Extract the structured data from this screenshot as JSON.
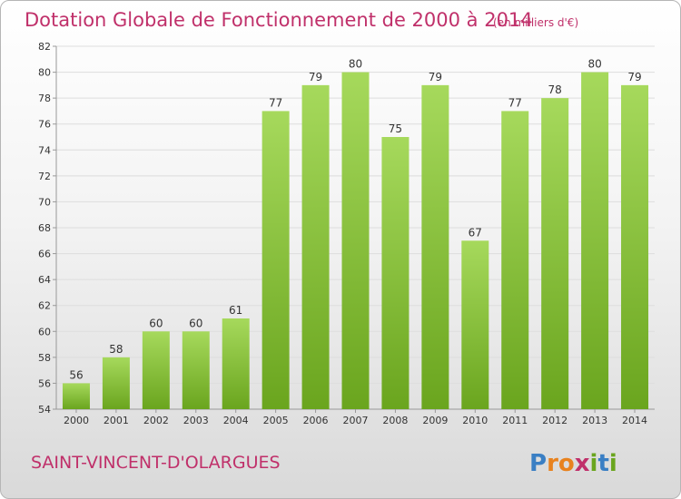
{
  "header": {
    "title": "Dotation Globale de Fonctionnement de 2000 à 2014",
    "unit": "(en milliers d'€)"
  },
  "footer": {
    "commune": "SAINT-VINCENT-D'OLARGUES",
    "logo_text": "Proxiti"
  },
  "colors": {
    "title": "#c0306a",
    "bar_light": "#a6d95c",
    "bar_dark": "#6aa51e",
    "axis_text": "#333333",
    "grid": "#dddddd"
  },
  "chart_data": {
    "type": "bar",
    "title": "Dotation Globale de Fonctionnement de 2000 à 2014",
    "subtitle": "(en milliers d'€)",
    "xlabel": "",
    "ylabel": "",
    "categories": [
      "2000",
      "2001",
      "2002",
      "2003",
      "2004",
      "2005",
      "2006",
      "2007",
      "2008",
      "2009",
      "2010",
      "2011",
      "2012",
      "2013",
      "2014"
    ],
    "values": [
      56,
      58,
      60,
      60,
      61,
      77,
      79,
      80,
      75,
      79,
      67,
      77,
      78,
      80,
      79
    ],
    "ylim": [
      54,
      82
    ],
    "yticks": [
      54,
      56,
      58,
      60,
      62,
      64,
      66,
      68,
      70,
      72,
      74,
      76,
      78,
      80,
      82
    ],
    "grid": true,
    "data_labels": true
  }
}
